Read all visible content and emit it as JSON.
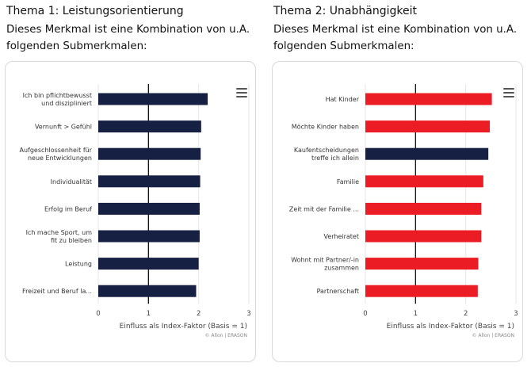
{
  "panels": [
    {
      "title": "Thema 1: Leistungsorientierung",
      "description": "Dieses Merkmal ist eine Kombination von u.A. folgenden Submerkmalen:",
      "chart_data": {
        "type": "bar",
        "orientation": "horizontal",
        "categories": [
          [
            "Ich bin pflichtbewusst",
            "und diszipliniert"
          ],
          [
            "Vernunft > Gefühl"
          ],
          [
            "Aufgeschlossenheit für",
            "neue Entwicklungen"
          ],
          [
            "Individualität"
          ],
          [
            "Erfolg im Beruf"
          ],
          [
            "Ich mache Sport, um",
            "fit zu bleiben"
          ],
          [
            "Leistung"
          ],
          [
            "Freizeit und Beruf la..."
          ]
        ],
        "values": [
          2.18,
          2.05,
          2.04,
          2.03,
          2.02,
          2.02,
          2.0,
          1.95
        ],
        "bar_colors": [
          "#152042",
          "#152042",
          "#152042",
          "#152042",
          "#152042",
          "#152042",
          "#152042",
          "#152042"
        ],
        "xlim": [
          0,
          3
        ],
        "xticks": [
          "0",
          "1",
          "2",
          "3"
        ],
        "reference_line": 1,
        "xlabel": "Einfluss als Index-Faktor (Basis = 1)",
        "credits": "© Allon | ERASON"
      }
    },
    {
      "title": "Thema 2: Unabhängigkeit",
      "description": "Dieses Merkmal ist eine Kombination von u.A. folgenden Submerkmalen:",
      "chart_data": {
        "type": "bar",
        "orientation": "horizontal",
        "categories": [
          [
            "Hat Kinder"
          ],
          [
            "Möchte Kinder haben"
          ],
          [
            "Kaufentscheidungen",
            "treffe ich allein"
          ],
          [
            "Familie"
          ],
          [
            "Zeit mit der Familie ..."
          ],
          [
            "Verheiratet"
          ],
          [
            "Wohnt mit Partner/-in",
            "zusammen"
          ],
          [
            "Partnerschaft"
          ]
        ],
        "values": [
          2.52,
          2.48,
          2.45,
          2.35,
          2.31,
          2.31,
          2.25,
          2.24
        ],
        "bar_colors": [
          "#ec1c24",
          "#ec1c24",
          "#152042",
          "#ec1c24",
          "#ec1c24",
          "#ec1c24",
          "#ec1c24",
          "#ec1c24"
        ],
        "xlim": [
          0,
          3
        ],
        "xticks": [
          "0",
          "1",
          "2",
          "3"
        ],
        "reference_line": 1,
        "xlabel": "Einfluss als Index-Faktor (Basis = 1)",
        "credits": "© Allon | ERASON"
      }
    }
  ]
}
